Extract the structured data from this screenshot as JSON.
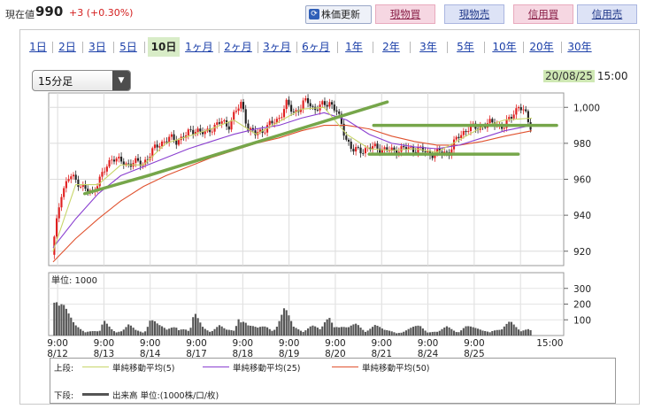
{
  "quote": {
    "label": "現在値",
    "price": "990",
    "change": "+3 (+0.30%)",
    "refresh_label": "株価更新"
  },
  "trade_buttons": [
    {
      "label": "現物買",
      "kind": "buy"
    },
    {
      "label": "現物売",
      "kind": "sell"
    },
    {
      "label": "信用買",
      "kind": "buy"
    },
    {
      "label": "信用売",
      "kind": "sell"
    }
  ],
  "ranges": [
    "1日",
    "2日",
    "3日",
    "5日",
    "10日",
    "1ヶ月",
    "2ヶ月",
    "3ヶ月",
    "6ヶ月",
    "1年",
    "2年",
    "3年",
    "5年",
    "10年",
    "20年",
    "30年"
  ],
  "active_range": "10日",
  "interval_select": {
    "value": "15分足"
  },
  "as_of": {
    "date": "20/08/25",
    "time": "15:00"
  },
  "legend": {
    "upper_label": "上段:",
    "lower_label": "下段:",
    "items": [
      {
        "label": "単純移動平均(5)",
        "color": "#c8d66a"
      },
      {
        "label": "単純移動平均(25)",
        "color": "#8a3fd0"
      },
      {
        "label": "単純移動平均(50)",
        "color": "#e0522f"
      }
    ],
    "volume_label": "出来高 単位:(1000株/口/枚)",
    "volume_color": "#555555"
  },
  "chart_data": {
    "type": "candlestick",
    "x_ticks": [
      {
        "time": "9:00",
        "date": "8/12"
      },
      {
        "time": "9:00",
        "date": "8/13"
      },
      {
        "time": "9:00",
        "date": "8/14"
      },
      {
        "time": "9:00",
        "date": "8/17"
      },
      {
        "time": "9:00",
        "date": "8/18"
      },
      {
        "time": "9:00",
        "date": "8/19"
      },
      {
        "time": "9:00",
        "date": "8/20"
      },
      {
        "time": "9:00",
        "date": "8/21"
      },
      {
        "time": "9:00",
        "date": "8/24"
      },
      {
        "time": "9:00",
        "date": "8/25"
      },
      {
        "time": "15:00",
        "date": ""
      }
    ],
    "price_axis": {
      "ticks": [
        1000,
        980,
        960,
        940,
        920
      ],
      "tick_labels": [
        "1,000",
        "980",
        "960",
        "940",
        "920"
      ],
      "ylim": [
        912,
        1008
      ]
    },
    "volume_axis": {
      "ticks": [
        300,
        200,
        100
      ],
      "unit_label": "単位: 1000",
      "ylim": [
        0,
        400
      ]
    },
    "up_color": "#e02020",
    "down_color": "#222222",
    "price_path": [
      [
        0,
        918
      ],
      [
        0.4,
        952
      ],
      [
        0.8,
        962
      ],
      [
        1.2,
        958
      ],
      [
        1.5,
        954
      ],
      [
        1.8,
        952
      ],
      [
        2.0,
        958
      ],
      [
        2.4,
        966
      ],
      [
        2.7,
        973
      ],
      [
        3.0,
        970
      ],
      [
        3.3,
        968
      ],
      [
        3.6,
        970
      ],
      [
        4.0,
        968
      ],
      [
        4.4,
        975
      ],
      [
        4.8,
        980
      ],
      [
        5.2,
        983
      ],
      [
        5.5,
        981
      ],
      [
        5.8,
        984
      ],
      [
        6.0,
        985
      ],
      [
        6.4,
        988
      ],
      [
        6.8,
        985
      ],
      [
        7.2,
        990
      ],
      [
        7.5,
        992
      ],
      [
        7.8,
        989
      ],
      [
        8.0,
        995
      ],
      [
        8.4,
        1002
      ],
      [
        8.7,
        988
      ],
      [
        9.0,
        985
      ],
      [
        9.3,
        987
      ],
      [
        9.6,
        990
      ],
      [
        10.0,
        993
      ],
      [
        10.4,
        1002
      ],
      [
        10.7,
        997
      ],
      [
        11.0,
        1000
      ],
      [
        11.3,
        1004
      ],
      [
        11.6,
        999
      ],
      [
        12.0,
        1001
      ],
      [
        12.3,
        1003
      ],
      [
        12.6,
        998
      ],
      [
        13.0,
        984
      ],
      [
        13.3,
        976
      ],
      [
        13.6,
        976
      ],
      [
        14.0,
        977
      ],
      [
        14.4,
        978
      ],
      [
        14.8,
        976
      ],
      [
        15.2,
        976
      ],
      [
        15.6,
        977
      ],
      [
        16.0,
        977
      ],
      [
        16.4,
        976
      ],
      [
        16.8,
        974
      ],
      [
        17.2,
        975
      ],
      [
        17.6,
        975
      ],
      [
        18.0,
        984
      ],
      [
        18.4,
        988
      ],
      [
        18.8,
        989
      ],
      [
        19.2,
        990
      ],
      [
        19.6,
        992
      ],
      [
        20.0,
        988
      ],
      [
        20.4,
        997
      ],
      [
        20.7,
        1000
      ],
      [
        21.0,
        996
      ],
      [
        21.2,
        990
      ]
    ],
    "sma5": [
      [
        0,
        920
      ],
      [
        1,
        957
      ],
      [
        2,
        957
      ],
      [
        3,
        968
      ],
      [
        4,
        968
      ],
      [
        5,
        980
      ],
      [
        6,
        984
      ],
      [
        7,
        988
      ],
      [
        8,
        993
      ],
      [
        9,
        985
      ],
      [
        10,
        992
      ],
      [
        11,
        999
      ],
      [
        12,
        1000
      ],
      [
        13,
        985
      ],
      [
        14,
        977
      ],
      [
        15,
        976
      ],
      [
        16,
        977
      ],
      [
        17,
        975
      ],
      [
        18,
        982
      ],
      [
        19,
        989
      ],
      [
        20,
        993
      ],
      [
        21.2,
        994
      ]
    ],
    "sma25": [
      [
        0,
        922
      ],
      [
        1,
        938
      ],
      [
        2,
        952
      ],
      [
        3,
        962
      ],
      [
        4,
        967
      ],
      [
        5,
        972
      ],
      [
        6,
        977
      ],
      [
        7,
        981
      ],
      [
        8,
        985
      ],
      [
        9,
        988
      ],
      [
        10,
        990
      ],
      [
        11,
        994
      ],
      [
        12,
        997
      ],
      [
        13,
        993
      ],
      [
        14,
        985
      ],
      [
        15,
        980
      ],
      [
        16,
        978
      ],
      [
        17,
        977
      ],
      [
        18,
        979
      ],
      [
        19,
        983
      ],
      [
        20,
        987
      ],
      [
        21.2,
        990
      ]
    ],
    "sma50": [
      [
        0,
        914
      ],
      [
        1,
        927
      ],
      [
        2,
        938
      ],
      [
        3,
        948
      ],
      [
        4,
        956
      ],
      [
        5,
        962
      ],
      [
        6,
        967
      ],
      [
        7,
        972
      ],
      [
        8,
        976
      ],
      [
        9,
        980
      ],
      [
        10,
        983
      ],
      [
        11,
        987
      ],
      [
        12,
        990
      ],
      [
        13,
        990
      ],
      [
        14,
        988
      ],
      [
        15,
        984
      ],
      [
        16,
        981
      ],
      [
        17,
        979
      ],
      [
        18,
        979
      ],
      [
        19,
        981
      ],
      [
        20,
        984
      ],
      [
        21.2,
        987
      ]
    ],
    "trend_lines": [
      {
        "from": [
          1.4,
          952
        ],
        "to": [
          4.2,
          962
        ]
      },
      {
        "from": [
          4.2,
          962
        ],
        "to": [
          14.8,
          1003
        ]
      },
      {
        "from": [
          14.2,
          990
        ],
        "to": [
          22.3,
          990
        ]
      },
      {
        "from": [
          14.0,
          974
        ],
        "to": [
          20.6,
          974
        ]
      }
    ],
    "trend_color": "#76a64a",
    "volume_profile": [
      [
        0.0,
        380
      ],
      [
        0.2,
        220
      ],
      [
        0.4,
        180
      ],
      [
        0.6,
        120
      ],
      [
        0.9,
        60
      ],
      [
        1.3,
        40
      ],
      [
        1.6,
        30
      ],
      [
        2.0,
        20
      ],
      [
        2.2,
        80
      ],
      [
        2.6,
        40
      ],
      [
        3.0,
        30
      ],
      [
        3.3,
        60
      ],
      [
        3.6,
        30
      ],
      [
        4.0,
        20
      ],
      [
        4.2,
        140
      ],
      [
        4.6,
        60
      ],
      [
        5.0,
        30
      ],
      [
        5.4,
        70
      ],
      [
        5.8,
        40
      ],
      [
        6.0,
        20
      ],
      [
        6.2,
        120
      ],
      [
        6.6,
        50
      ],
      [
        7.0,
        40
      ],
      [
        7.3,
        60
      ],
      [
        7.6,
        30
      ],
      [
        8.0,
        30
      ],
      [
        8.2,
        170
      ],
      [
        8.6,
        60
      ],
      [
        9.0,
        40
      ],
      [
        9.4,
        60
      ],
      [
        9.8,
        50
      ],
      [
        10.2,
        150
      ],
      [
        10.6,
        50
      ],
      [
        11.0,
        40
      ],
      [
        11.4,
        60
      ],
      [
        11.8,
        30
      ],
      [
        12.2,
        130
      ],
      [
        12.6,
        60
      ],
      [
        13.0,
        40
      ],
      [
        13.4,
        70
      ],
      [
        13.8,
        40
      ],
      [
        14.2,
        60
      ],
      [
        14.6,
        30
      ],
      [
        15.0,
        30
      ],
      [
        15.4,
        20
      ],
      [
        15.8,
        40
      ],
      [
        16.2,
        60
      ],
      [
        16.6,
        30
      ],
      [
        17.0,
        20
      ],
      [
        17.4,
        50
      ],
      [
        17.8,
        30
      ],
      [
        18.2,
        60
      ],
      [
        18.6,
        40
      ],
      [
        19.0,
        30
      ],
      [
        19.4,
        40
      ],
      [
        19.8,
        30
      ],
      [
        20.2,
        80
      ],
      [
        20.6,
        50
      ],
      [
        21.0,
        40
      ],
      [
        21.2,
        20
      ]
    ],
    "x_units": 21.2
  }
}
